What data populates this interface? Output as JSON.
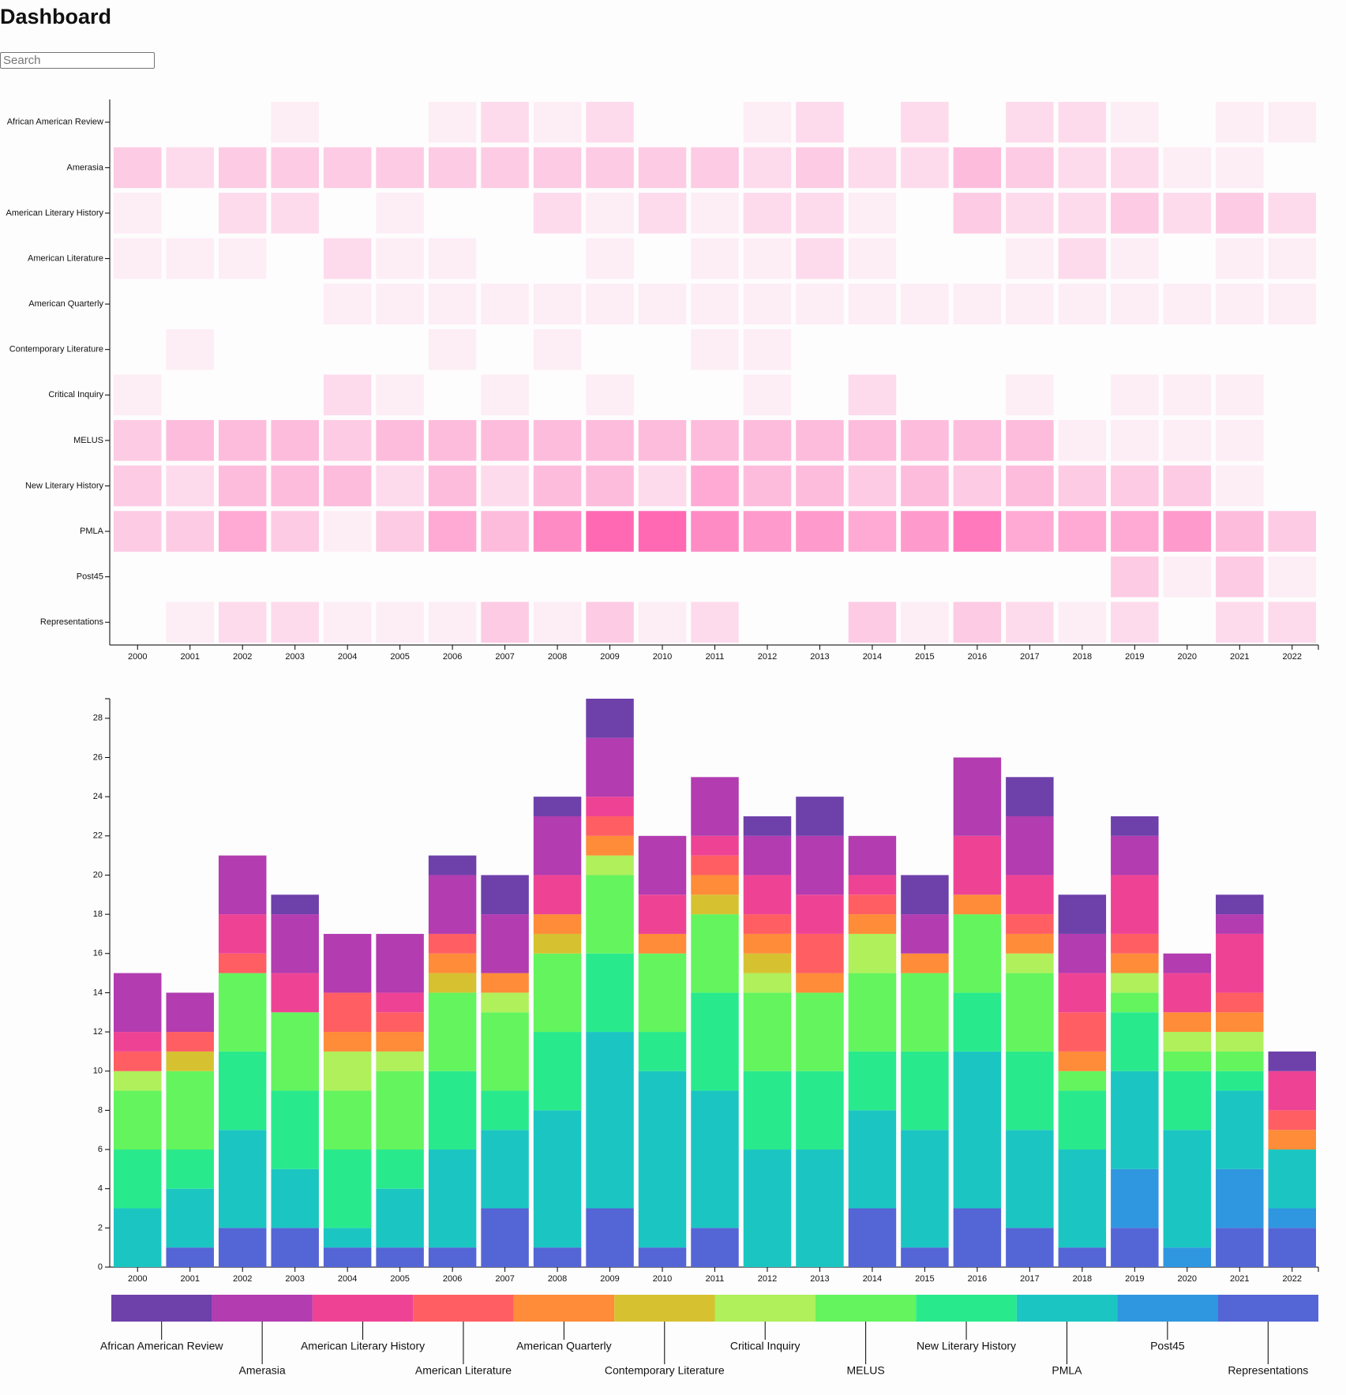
{
  "title": "Dashboard",
  "search_placeholder": "Search",
  "chart_data": [
    {
      "type": "heatmap",
      "color": "#ff69b4",
      "categories": [
        "2000",
        "2001",
        "2002",
        "2003",
        "2004",
        "2005",
        "2006",
        "2007",
        "2008",
        "2009",
        "2010",
        "2011",
        "2012",
        "2013",
        "2014",
        "2015",
        "2016",
        "2017",
        "2018",
        "2019",
        "2020",
        "2021",
        "2022"
      ],
      "series": [
        {
          "name": "African American Review",
          "values": [
            0,
            0,
            0,
            1,
            0,
            0,
            1,
            2,
            1,
            2,
            0,
            0,
            1,
            2,
            0,
            2,
            0,
            2,
            2,
            1,
            0,
            1,
            1
          ]
        },
        {
          "name": "Amerasia",
          "values": [
            3,
            2,
            3,
            3,
            3,
            3,
            3,
            3,
            3,
            3,
            3,
            3,
            2,
            3,
            2,
            2,
            4,
            3,
            2,
            2,
            1,
            1,
            0
          ]
        },
        {
          "name": "American Literary History",
          "values": [
            1,
            0,
            2,
            2,
            0,
            1,
            0,
            0,
            2,
            1,
            2,
            1,
            2,
            2,
            1,
            0,
            3,
            2,
            2,
            3,
            2,
            3,
            2
          ]
        },
        {
          "name": "American Literature",
          "values": [
            1,
            1,
            1,
            0,
            2,
            1,
            1,
            0,
            0,
            1,
            0,
            1,
            1,
            2,
            1,
            0,
            0,
            1,
            2,
            1,
            0,
            1,
            1
          ]
        },
        {
          "name": "American Quarterly",
          "values": [
            0,
            0,
            0,
            0,
            1,
            1,
            1,
            1,
            1,
            1,
            1,
            1,
            1,
            1,
            1,
            1,
            1,
            1,
            1,
            1,
            1,
            1,
            1
          ]
        },
        {
          "name": "Contemporary Literature",
          "values": [
            0,
            1,
            0,
            0,
            0,
            0,
            1,
            0,
            1,
            0,
            0,
            1,
            1,
            0,
            0,
            0,
            0,
            0,
            0,
            0,
            0,
            0,
            0
          ]
        },
        {
          "name": "Critical Inquiry",
          "values": [
            1,
            0,
            0,
            0,
            2,
            1,
            0,
            1,
            0,
            1,
            0,
            0,
            1,
            0,
            2,
            0,
            0,
            1,
            0,
            1,
            1,
            1,
            0
          ]
        },
        {
          "name": "MELUS",
          "values": [
            3,
            4,
            4,
            4,
            3,
            4,
            4,
            4,
            4,
            4,
            4,
            4,
            4,
            4,
            4,
            4,
            4,
            4,
            1,
            1,
            1,
            1,
            0
          ]
        },
        {
          "name": "New Literary History",
          "values": [
            3,
            2,
            4,
            4,
            4,
            2,
            4,
            2,
            4,
            4,
            2,
            5,
            4,
            4,
            3,
            4,
            3,
            4,
            3,
            3,
            3,
            1,
            0
          ]
        },
        {
          "name": "PMLA",
          "values": [
            3,
            3,
            5,
            3,
            1,
            3,
            5,
            4,
            7,
            9,
            9,
            7,
            6,
            6,
            5,
            6,
            8,
            5,
            5,
            5,
            6,
            4,
            3
          ]
        },
        {
          "name": "Post45",
          "values": [
            0,
            0,
            0,
            0,
            0,
            0,
            0,
            0,
            0,
            0,
            0,
            0,
            0,
            0,
            0,
            0,
            0,
            0,
            0,
            3,
            1,
            3,
            1
          ]
        },
        {
          "name": "Representations",
          "values": [
            0,
            1,
            2,
            2,
            1,
            1,
            1,
            3,
            1,
            3,
            1,
            2,
            0,
            0,
            3,
            1,
            3,
            2,
            1,
            2,
            0,
            2,
            2
          ]
        }
      ]
    },
    {
      "type": "bar",
      "stacked": true,
      "ylim": [
        0,
        29
      ],
      "yticks": [
        0,
        2,
        4,
        6,
        8,
        10,
        12,
        14,
        16,
        18,
        20,
        22,
        24,
        26,
        28
      ],
      "categories": [
        "2000",
        "2001",
        "2002",
        "2003",
        "2004",
        "2005",
        "2006",
        "2007",
        "2008",
        "2009",
        "2010",
        "2011",
        "2012",
        "2013",
        "2014",
        "2015",
        "2016",
        "2017",
        "2018",
        "2019",
        "2020",
        "2021",
        "2022"
      ],
      "series": [
        {
          "name": "African American Review",
          "color": "#6e40aa",
          "values": [
            0,
            0,
            0,
            1,
            0,
            0,
            1,
            2,
            1,
            2,
            0,
            0,
            1,
            2,
            0,
            2,
            0,
            2,
            2,
            1,
            0,
            1,
            1
          ]
        },
        {
          "name": "Amerasia",
          "color": "#b23cb0",
          "values": [
            3,
            2,
            3,
            3,
            3,
            3,
            3,
            3,
            3,
            3,
            3,
            3,
            2,
            3,
            2,
            2,
            4,
            3,
            2,
            2,
            1,
            1,
            0
          ]
        },
        {
          "name": "American Literary History",
          "color": "#ee4395",
          "values": [
            1,
            0,
            2,
            2,
            0,
            1,
            0,
            0,
            2,
            1,
            2,
            1,
            2,
            2,
            1,
            0,
            3,
            2,
            2,
            3,
            2,
            3,
            2
          ]
        },
        {
          "name": "American Literature",
          "color": "#ff5e63",
          "values": [
            1,
            1,
            1,
            0,
            2,
            1,
            1,
            0,
            0,
            1,
            0,
            1,
            1,
            2,
            1,
            0,
            0,
            1,
            2,
            1,
            0,
            1,
            1
          ]
        },
        {
          "name": "American Quarterly",
          "color": "#fe8c38",
          "values": [
            0,
            0,
            0,
            0,
            1,
            1,
            1,
            1,
            1,
            1,
            1,
            1,
            1,
            1,
            1,
            1,
            1,
            1,
            1,
            1,
            1,
            1,
            1
          ]
        },
        {
          "name": "Contemporary Literature",
          "color": "#d6c231",
          "values": [
            0,
            1,
            0,
            0,
            0,
            0,
            1,
            0,
            1,
            0,
            0,
            1,
            1,
            0,
            0,
            0,
            0,
            0,
            0,
            0,
            0,
            0,
            0
          ]
        },
        {
          "name": "Critical Inquiry",
          "color": "#aff05b",
          "values": [
            1,
            0,
            0,
            0,
            2,
            1,
            0,
            1,
            0,
            1,
            0,
            0,
            1,
            0,
            2,
            0,
            0,
            1,
            0,
            1,
            1,
            1,
            0
          ]
        },
        {
          "name": "MELUS",
          "color": "#63f45e",
          "values": [
            3,
            4,
            4,
            4,
            3,
            4,
            4,
            4,
            4,
            4,
            4,
            4,
            4,
            4,
            4,
            4,
            4,
            4,
            1,
            1,
            1,
            1,
            0
          ]
        },
        {
          "name": "New Literary History",
          "color": "#28ea8d",
          "values": [
            3,
            2,
            4,
            4,
            4,
            2,
            4,
            2,
            4,
            4,
            2,
            5,
            4,
            4,
            3,
            4,
            3,
            4,
            3,
            3,
            3,
            1,
            0
          ]
        },
        {
          "name": "PMLA",
          "color": "#1bc6c2",
          "values": [
            3,
            3,
            5,
            3,
            1,
            3,
            5,
            4,
            7,
            9,
            9,
            7,
            6,
            6,
            5,
            6,
            8,
            5,
            5,
            5,
            6,
            4,
            3
          ]
        },
        {
          "name": "Post45",
          "color": "#2f96e0",
          "values": [
            0,
            0,
            0,
            0,
            0,
            0,
            0,
            0,
            0,
            0,
            0,
            0,
            0,
            0,
            0,
            0,
            0,
            0,
            0,
            3,
            1,
            3,
            1
          ]
        },
        {
          "name": "Representations",
          "color": "#5465d6",
          "values": [
            0,
            1,
            2,
            2,
            1,
            1,
            1,
            3,
            1,
            3,
            1,
            2,
            0,
            0,
            3,
            1,
            3,
            2,
            1,
            2,
            0,
            2,
            2
          ]
        }
      ]
    }
  ]
}
